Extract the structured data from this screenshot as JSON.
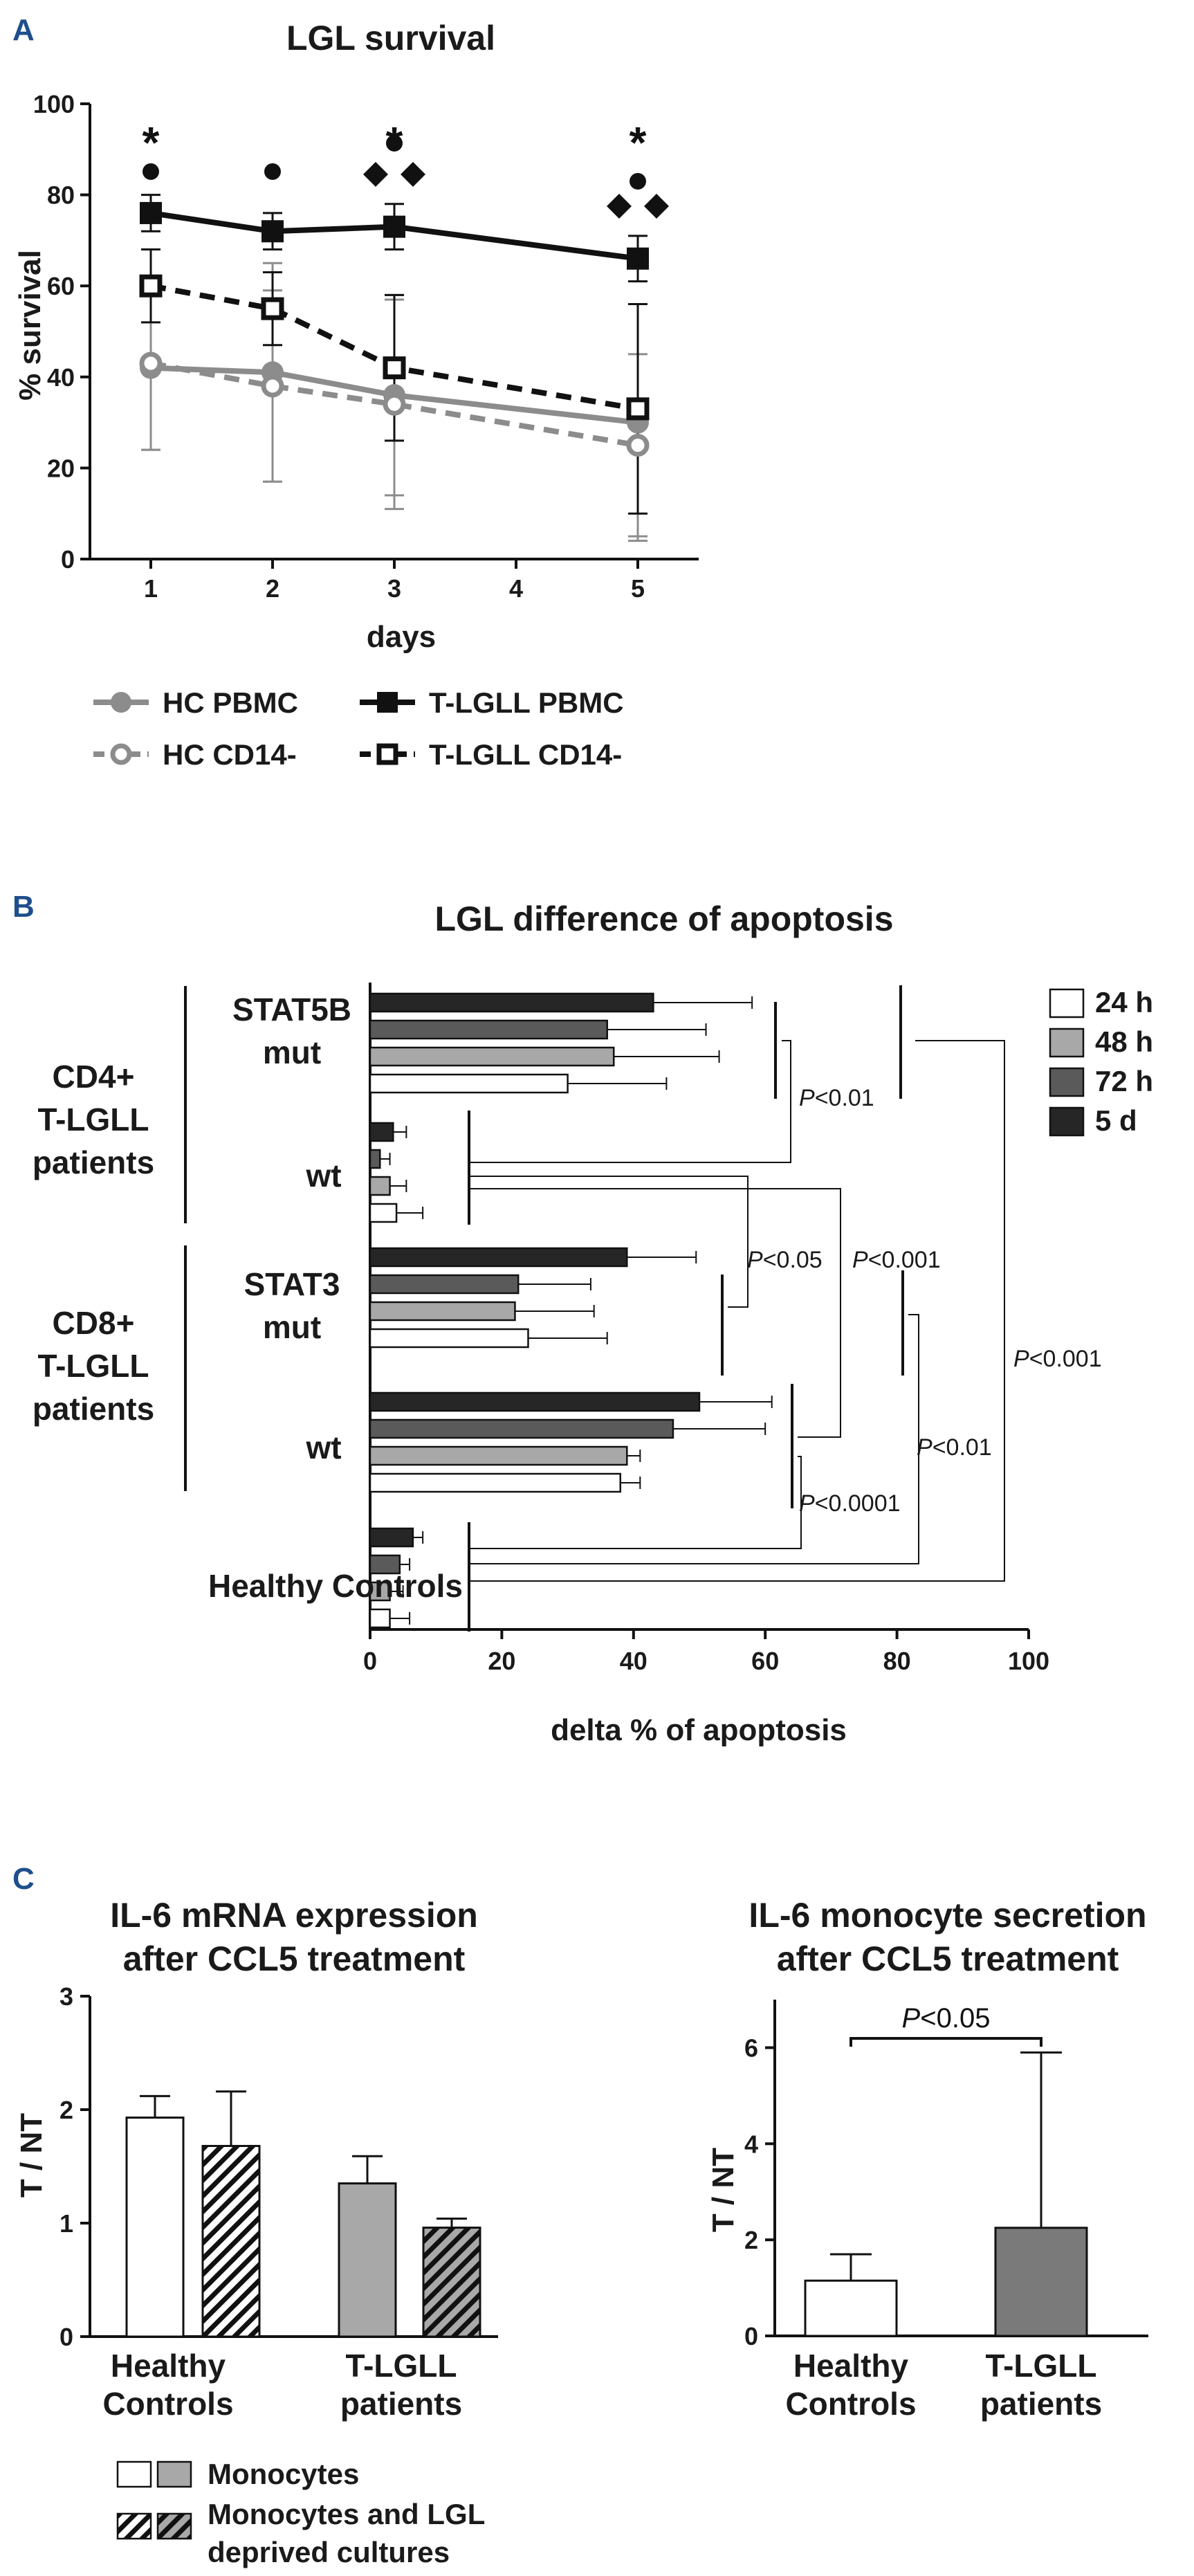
{
  "panels": {
    "A": "A",
    "B": "B",
    "C": "C"
  },
  "chart_data": [
    {
      "id": "A",
      "type": "line",
      "title": "LGL survival",
      "xlabel": "days",
      "ylabel": "% survival",
      "xlim": [
        0.5,
        5.5
      ],
      "ylim": [
        0,
        100
      ],
      "xticks": [
        "1",
        "2",
        "3",
        "4",
        "5"
      ],
      "yticks": [
        "0",
        "20",
        "40",
        "60",
        "80",
        "100"
      ],
      "grid": false,
      "legend_position": "bottom",
      "series": [
        {
          "name": "HC PBMC",
          "color": "#8c8c8c",
          "marker": "circle-filled",
          "line": "solid",
          "x": [
            1,
            2,
            3,
            5
          ],
          "y": [
            42,
            41,
            36,
            30
          ],
          "err": [
            18,
            24,
            22,
            26
          ]
        },
        {
          "name": "HC CD14-",
          "color": "#8c8c8c",
          "marker": "circle-open",
          "line": "dashed",
          "x": [
            1,
            2,
            3,
            5
          ],
          "y": [
            43,
            38,
            34,
            25
          ],
          "err": [
            19,
            21,
            23,
            20
          ]
        },
        {
          "name": "T-LGLL PBMC",
          "color": "#111111",
          "marker": "square-filled",
          "line": "solid",
          "x": [
            1,
            2,
            3,
            5
          ],
          "y": [
            76,
            72,
            73,
            66
          ],
          "err": [
            4,
            4,
            5,
            5
          ]
        },
        {
          "name": "T-LGLL CD14-",
          "color": "#111111",
          "marker": "square-open",
          "line": "dashed",
          "x": [
            1,
            2,
            3,
            5
          ],
          "y": [
            60,
            55,
            42,
            33
          ],
          "err": [
            8,
            8,
            16,
            23
          ]
        }
      ],
      "annotations": {
        "asterisk": {
          "text": "*",
          "days": [
            1,
            3,
            5
          ]
        },
        "circle_days": [
          1,
          2,
          3,
          5
        ],
        "diamond_days": [
          3,
          5
        ]
      }
    },
    {
      "id": "B",
      "type": "bar",
      "orientation": "horizontal",
      "title": "LGL difference of apoptosis",
      "xlabel": "delta % of apoptosis",
      "xlim": [
        0,
        100
      ],
      "xticks": [
        "0",
        "20",
        "40",
        "60",
        "80",
        "100"
      ],
      "legend_position": "top-right",
      "legend": [
        {
          "label": "24 h",
          "color": "#ffffff"
        },
        {
          "label": "48 h",
          "color": "#a8a8a8"
        },
        {
          "label": "72 h",
          "color": "#5a5a5a"
        },
        {
          "label": "5 d",
          "color": "#262626"
        }
      ],
      "group_labels": [
        "CD4+",
        "T-LGLL",
        "patients",
        "CD8+",
        "T-LGLL",
        "patients"
      ],
      "categories": [
        {
          "label": [
            "STAT5B",
            "mut"
          ],
          "values": [
            30,
            37,
            36,
            43
          ],
          "err": [
            15,
            16,
            15,
            15
          ]
        },
        {
          "label": [
            "wt"
          ],
          "values": [
            4,
            3,
            1.5,
            3.5
          ],
          "err": [
            4,
            2.5,
            1.5,
            2
          ]
        },
        {
          "label": [
            "STAT3",
            "mut"
          ],
          "values": [
            24,
            22,
            22.5,
            39
          ],
          "err": [
            12,
            12,
            11,
            10.5
          ]
        },
        {
          "label": [
            "wt"
          ],
          "values": [
            38,
            39,
            46,
            50
          ],
          "err": [
            3,
            2,
            14,
            11
          ]
        },
        {
          "label": [
            "Healthy Controls"
          ],
          "values": [
            3,
            3,
            4.5,
            6.5
          ],
          "err": [
            3,
            2,
            1.5,
            1.5
          ]
        }
      ],
      "pvalues": [
        "P<0.01",
        "P<0.05",
        "P<0.001",
        "P<0.001",
        "P<0.01",
        "P<0.0001"
      ]
    },
    {
      "id": "C1",
      "type": "bar",
      "title": [
        "IL-6 mRNA expression",
        "after CCL5 treatment"
      ],
      "ylabel": "T / NT",
      "ylim": [
        0,
        3
      ],
      "yticks": [
        "0",
        "1",
        "2",
        "3"
      ],
      "categories": [
        [
          "Healthy",
          "Controls"
        ],
        [
          "T-LGLL",
          "patients"
        ]
      ],
      "series": [
        {
          "name": "Monocytes",
          "values": [
            1.93,
            1.35
          ],
          "err": [
            0.19,
            0.24
          ]
        },
        {
          "name": "Monocytes and LGL deprived cultures",
          "values": [
            1.68,
            0.96
          ],
          "err": [
            0.48,
            0.08
          ]
        }
      ],
      "legend_position": "bottom",
      "legend": [
        {
          "label": "Monocytes"
        },
        {
          "label": [
            "Monocytes and LGL",
            "deprived cultures"
          ]
        }
      ]
    },
    {
      "id": "C2",
      "type": "bar",
      "title": [
        "IL-6 monocyte secretion",
        "after CCL5 treatment"
      ],
      "ylabel": "T / NT",
      "ylim": [
        0,
        7
      ],
      "yticks": [
        "0",
        "2",
        "4",
        "6"
      ],
      "categories": [
        [
          "Healthy",
          "Controls"
        ],
        [
          "T-LGLL",
          "patients"
        ]
      ],
      "values": [
        1.15,
        2.25
      ],
      "err": [
        0.55,
        3.65
      ],
      "pvalue": "P<0.05"
    }
  ]
}
